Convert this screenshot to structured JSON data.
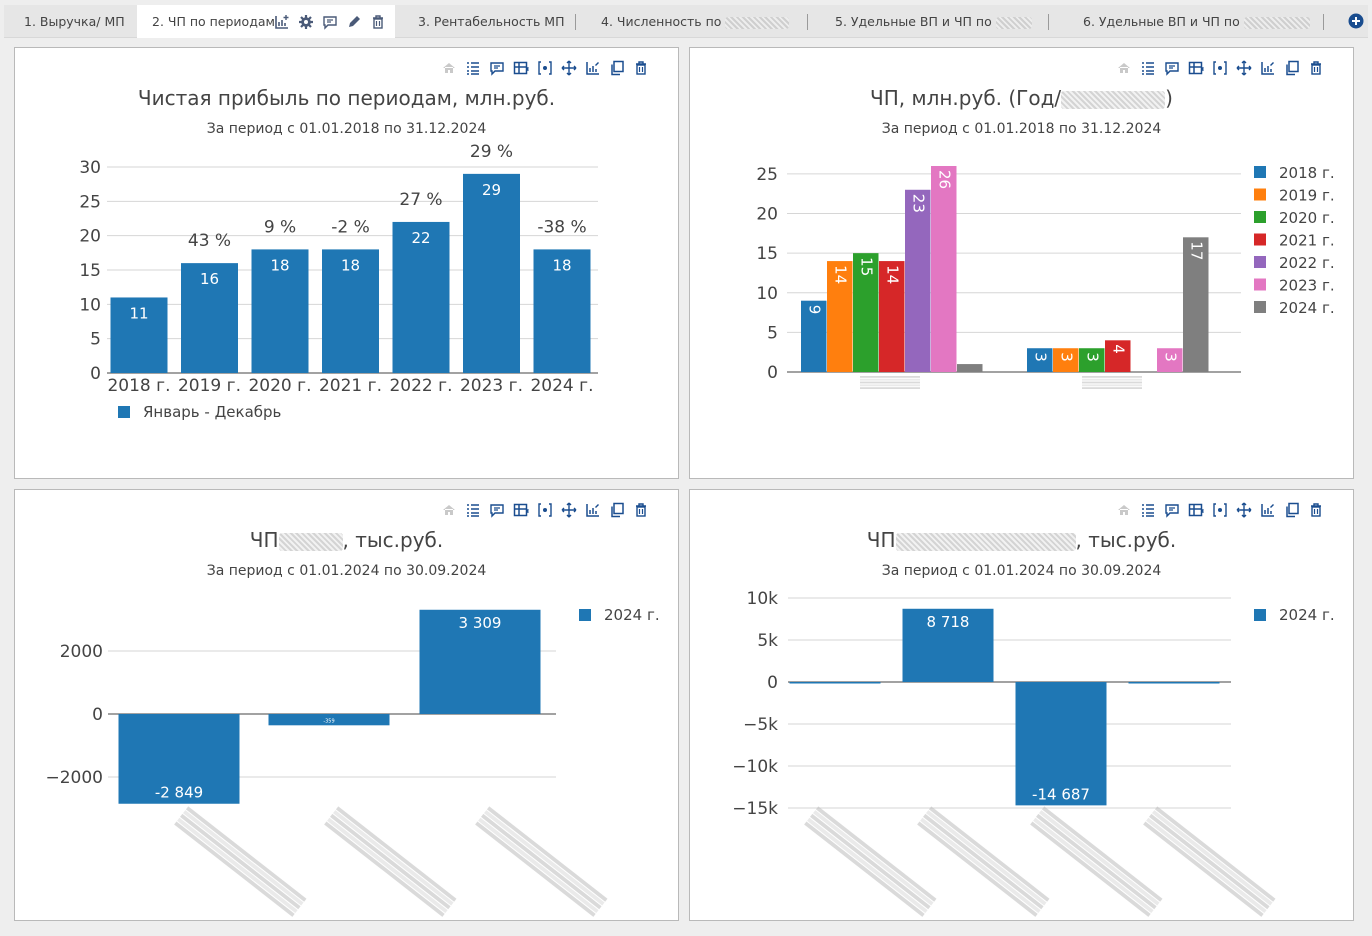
{
  "tabs": [
    {
      "label": "1. Выручка/ МП",
      "active": false
    },
    {
      "label": "2. ЧП по периодам",
      "active": true
    },
    {
      "label": "3. Рентабельность МП",
      "active": false
    },
    {
      "label": "4. Численность по",
      "active": false
    },
    {
      "label": "5. Удельные ВП и ЧП по",
      "active": false
    },
    {
      "label": "6. Удельные ВП и ЧП по",
      "active": false
    }
  ],
  "tab_tool_icons": [
    "add-chart-icon",
    "gear-icon",
    "comment-icon",
    "pencil-icon",
    "trash-icon"
  ],
  "panel_toolbar_icons": [
    "home-icon",
    "list-icon",
    "comment-icon",
    "table-icon",
    "code-icon",
    "move-icon",
    "chart-edit-icon",
    "copy-icon",
    "trash-icon"
  ],
  "colors": {
    "primary": "#1f77b4",
    "series": [
      "#1f77b4",
      "#ff7f0e",
      "#2ca02c",
      "#d62728",
      "#9467bd",
      "#e377c2",
      "#7f7f7f"
    ],
    "icon": "#1a4d8f"
  },
  "panels": [
    {
      "title": "Чистая прибыль по периодам, млн.руб.",
      "title_suffix": "",
      "subtitle": "За период с 01.01.2018 по 31.12.2024"
    },
    {
      "title": "ЧП, млн.руб. (Год/",
      "title_suffix": ")",
      "subtitle": "За период с 01.01.2018 по 31.12.2024"
    },
    {
      "title": "ЧП",
      "title_suffix": ", тыс.руб.",
      "subtitle": "За период с 01.01.2024 по 30.09.2024"
    },
    {
      "title": "ЧП",
      "title_suffix": ", тыс.руб.",
      "subtitle": "За период с 01.01.2024 по 30.09.2024"
    }
  ],
  "chart_data": [
    {
      "type": "bar",
      "categories": [
        "2018 г.",
        "2019 г.",
        "2020 г.",
        "2021 г.",
        "2022 г.",
        "2023 г.",
        "2024 г."
      ],
      "series": [
        {
          "name": "Январь - Декабрь",
          "values": [
            11,
            16,
            18,
            18,
            22,
            29,
            18
          ]
        }
      ],
      "value_labels": [
        "11",
        "16",
        "18",
        "18",
        "22",
        "29",
        "18"
      ],
      "annotations": [
        "",
        "43 %",
        "9 %",
        "-2 %",
        "27 %",
        "29 %",
        "-38 %"
      ],
      "ylim": [
        0,
        30
      ],
      "yticks": [
        0,
        5,
        10,
        15,
        20,
        25,
        30
      ],
      "grid": true,
      "legend": "bottom-left"
    },
    {
      "type": "bar",
      "categories": [
        "",
        ""
      ],
      "series": [
        {
          "name": "2018 г.",
          "values": [
            9,
            3
          ],
          "labels": [
            "9",
            "3"
          ]
        },
        {
          "name": "2019 г.",
          "values": [
            14,
            3
          ],
          "labels": [
            "14",
            "3"
          ]
        },
        {
          "name": "2020 г.",
          "values": [
            15,
            3
          ],
          "labels": [
            "15",
            "3"
          ]
        },
        {
          "name": "2021 г.",
          "values": [
            14,
            4
          ],
          "labels": [
            "14",
            "4"
          ]
        },
        {
          "name": "2022 г.",
          "values": [
            23,
            0
          ],
          "labels": [
            "23",
            ""
          ]
        },
        {
          "name": "2023 г.",
          "values": [
            26,
            3
          ],
          "labels": [
            "26",
            "3"
          ]
        },
        {
          "name": "2024 г.",
          "values": [
            1,
            17
          ],
          "labels": [
            "",
            "17"
          ]
        }
      ],
      "ylim": [
        0,
        26
      ],
      "yticks": [
        0,
        5,
        10,
        15,
        20,
        25
      ],
      "grid": true,
      "legend": "right"
    },
    {
      "type": "bar",
      "categories": [
        "",
        "",
        ""
      ],
      "series": [
        {
          "name": "2024 г.",
          "values": [
            -2849,
            -359,
            3309
          ]
        }
      ],
      "value_labels": [
        "-2 849",
        "-359",
        "3 309"
      ],
      "ylim": [
        -2849,
        3309
      ],
      "yticks": [
        -2000,
        0,
        2000
      ],
      "ytick_labels": [
        "−2000",
        "0",
        "2000"
      ],
      "grid": true,
      "legend": "top-right"
    },
    {
      "type": "bar",
      "categories": [
        "",
        "",
        "",
        ""
      ],
      "series": [
        {
          "name": "2024 г.",
          "values": [
            -60,
            8718,
            -14687,
            -70
          ]
        }
      ],
      "value_labels": [
        "",
        "8 718",
        "-14 687",
        ""
      ],
      "ylim": [
        -14687,
        10000
      ],
      "yticks": [
        -15000,
        -10000,
        -5000,
        0,
        5000,
        10000
      ],
      "ytick_labels": [
        "−15k",
        "−10k",
        "−5k",
        "0",
        "5k",
        "10k"
      ],
      "grid": true,
      "legend": "top-right"
    }
  ]
}
